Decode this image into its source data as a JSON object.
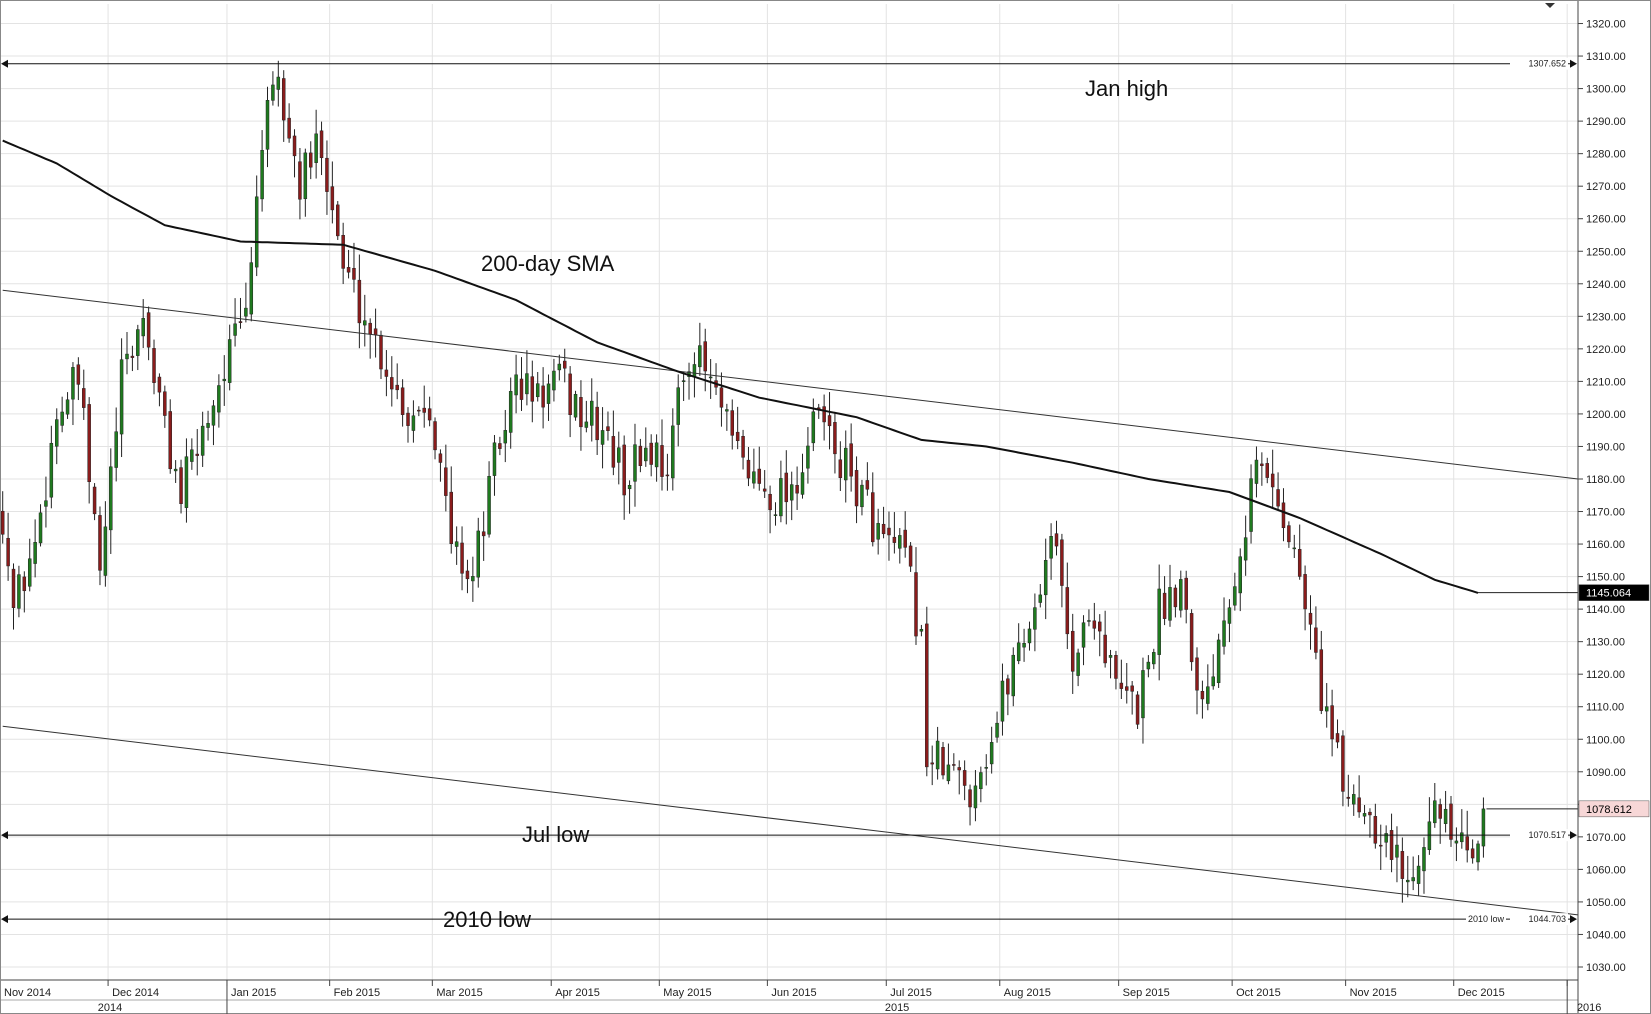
{
  "chart_data": {
    "type": "candlestick",
    "ylim": [
      1026,
      1326
    ],
    "ytick_labels": [
      "1030.00",
      "1040.00",
      "1050.00",
      "1060.00",
      "1070.00",
      "1080.00",
      "1090.00",
      "1100.00",
      "1110.00",
      "1120.00",
      "1130.00",
      "1140.00",
      "1150.00",
      "1160.00",
      "1170.00",
      "1180.00",
      "1190.00",
      "1200.00",
      "1210.00",
      "1220.00",
      "1230.00",
      "1240.00",
      "1250.00",
      "1260.00",
      "1270.00",
      "1280.00",
      "1290.00",
      "1300.00",
      "1310.00",
      "1320.00"
    ],
    "x_month_labels": [
      "Nov 2014",
      "Dec 2014",
      "Jan 2015",
      "Feb 2015",
      "Mar 2015",
      "Apr 2015",
      "May 2015",
      "Jun 2015",
      "Jul 2015",
      "Aug 2015",
      "Sep 2015",
      "Oct 2015",
      "Nov 2015",
      "Dec 2015"
    ],
    "x_year_labels": [
      "2014",
      "2015",
      "2016"
    ],
    "annotations": [
      "Jan high",
      "200-day SMA",
      "Jul low",
      "2010 low"
    ],
    "levels": [
      {
        "value": 1307.652,
        "label": "1307.652"
      },
      {
        "value": 1070.517,
        "label": "1070.517"
      },
      {
        "value": 1044.703,
        "label": "1044.703",
        "prefix": "2010 low"
      }
    ],
    "price_tags": [
      {
        "value": 1145.064,
        "label": "1145.064",
        "series": "sma",
        "bg": "#000000",
        "fg": "#ffffff"
      },
      {
        "value": 1078.612,
        "label": "1078.612",
        "series": "price",
        "bg": "#f7d7d7",
        "fg": "#000000"
      }
    ],
    "trendlines": [
      {
        "name": "upper",
        "points": [
          [
            0,
            1238
          ],
          [
            291,
            1180
          ]
        ]
      },
      {
        "name": "lower",
        "points": [
          [
            0,
            1104
          ],
          [
            291,
            1046
          ]
        ]
      }
    ],
    "sma_anchors": [
      [
        0,
        1284
      ],
      [
        10,
        1277
      ],
      [
        20,
        1267
      ],
      [
        30,
        1258
      ],
      [
        44,
        1253
      ],
      [
        63,
        1252
      ],
      [
        80,
        1244
      ],
      [
        95,
        1235
      ],
      [
        110,
        1222
      ],
      [
        125,
        1213
      ],
      [
        140,
        1205
      ],
      [
        158,
        1199
      ],
      [
        170,
        1192
      ],
      [
        182,
        1190
      ],
      [
        198,
        1185
      ],
      [
        212,
        1180
      ],
      [
        227,
        1176
      ],
      [
        240,
        1168
      ],
      [
        255,
        1157
      ],
      [
        265,
        1149
      ],
      [
        273,
        1145
      ]
    ],
    "close_anchors": [
      [
        0,
        1170
      ],
      [
        2,
        1140
      ],
      [
        6,
        1160
      ],
      [
        10,
        1200
      ],
      [
        14,
        1210
      ],
      [
        18,
        1150
      ],
      [
        22,
        1210
      ],
      [
        26,
        1230
      ],
      [
        30,
        1195
      ],
      [
        33,
        1175
      ],
      [
        37,
        1195
      ],
      [
        41,
        1215
      ],
      [
        45,
        1230
      ],
      [
        48,
        1285
      ],
      [
        51,
        1300
      ],
      [
        55,
        1270
      ],
      [
        59,
        1285
      ],
      [
        63,
        1245
      ],
      [
        67,
        1230
      ],
      [
        71,
        1215
      ],
      [
        75,
        1200
      ],
      [
        79,
        1205
      ],
      [
        83,
        1160
      ],
      [
        87,
        1150
      ],
      [
        91,
        1185
      ],
      [
        95,
        1210
      ],
      [
        99,
        1205
      ],
      [
        103,
        1210
      ],
      [
        107,
        1200
      ],
      [
        111,
        1195
      ],
      [
        115,
        1180
      ],
      [
        119,
        1190
      ],
      [
        123,
        1185
      ],
      [
        127,
        1220
      ],
      [
        131,
        1210
      ],
      [
        135,
        1190
      ],
      [
        139,
        1180
      ],
      [
        143,
        1175
      ],
      [
        147,
        1180
      ],
      [
        151,
        1200
      ],
      [
        155,
        1185
      ],
      [
        159,
        1175
      ],
      [
        163,
        1160
      ],
      [
        167,
        1155
      ],
      [
        170,
        1130
      ],
      [
        171,
        1095
      ],
      [
        175,
        1090
      ],
      [
        179,
        1085
      ],
      [
        183,
        1100
      ],
      [
        187,
        1125
      ],
      [
        191,
        1140
      ],
      [
        194,
        1165
      ],
      [
        198,
        1125
      ],
      [
        202,
        1140
      ],
      [
        206,
        1115
      ],
      [
        210,
        1110
      ],
      [
        214,
        1140
      ],
      [
        218,
        1150
      ],
      [
        222,
        1110
      ],
      [
        226,
        1140
      ],
      [
        229,
        1160
      ],
      [
        232,
        1185
      ],
      [
        236,
        1175
      ],
      [
        240,
        1150
      ],
      [
        244,
        1115
      ],
      [
        248,
        1085
      ],
      [
        252,
        1080
      ],
      [
        256,
        1070
      ],
      [
        260,
        1055
      ],
      [
        264,
        1080
      ],
      [
        268,
        1070
      ],
      [
        272,
        1060
      ],
      [
        274,
        1078.6
      ]
    ],
    "month_starts": [
      0,
      20,
      42,
      61,
      80,
      102,
      122,
      142,
      164,
      185,
      207,
      228,
      249,
      269,
      290
    ]
  }
}
